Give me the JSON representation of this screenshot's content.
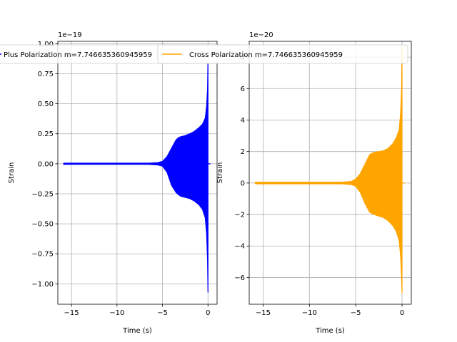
{
  "chart_data": [
    {
      "type": "line",
      "xlabel": "Time (s)",
      "ylabel": "Strain",
      "offset_text": "1e−19",
      "series": [
        {
          "name": "Plus Polarization m=7.746635360945959",
          "color": "#0000ff"
        }
      ],
      "xlim": [
        -16.5,
        1.0
      ],
      "ylim": [
        -1.17,
        1.02
      ],
      "x_ticks": [
        -15,
        -10,
        -5,
        0
      ],
      "x_tick_labels": [
        "−15",
        "−10",
        "−5",
        "0"
      ],
      "y_ticks": [
        -1.0,
        -0.75,
        -0.5,
        -0.25,
        0.0,
        0.25,
        0.5,
        0.75,
        1.0
      ],
      "y_tick_labels": [
        "−1.00",
        "−0.75",
        "−0.50",
        "−0.25",
        "0.00",
        "0.25",
        "0.50",
        "0.75",
        "1.00"
      ],
      "envelope": {
        "t": [
          -15.8,
          -6.5,
          -5.5,
          -5.0,
          -4.5,
          -4.0,
          -3.5,
          -3.2,
          -3.0,
          -2.5,
          -2.0,
          -1.5,
          -1.0,
          -0.6,
          -0.3,
          -0.15,
          -0.05,
          0.0
        ],
        "upper": [
          0.005,
          0.005,
          0.01,
          0.02,
          0.06,
          0.13,
          0.2,
          0.22,
          0.225,
          0.235,
          0.25,
          0.27,
          0.3,
          0.33,
          0.38,
          0.48,
          0.62,
          0.88
        ],
        "lower": [
          -0.005,
          -0.005,
          -0.01,
          -0.02,
          -0.07,
          -0.18,
          -0.24,
          -0.26,
          -0.27,
          -0.28,
          -0.29,
          -0.31,
          -0.34,
          -0.38,
          -0.45,
          -0.58,
          -0.8,
          -1.07
        ]
      },
      "grid": true,
      "legend_position": "top"
    },
    {
      "type": "line",
      "xlabel": "Time (s)",
      "ylabel": "Strain",
      "offset_text": "1e−20",
      "series": [
        {
          "name": "Cross Polarization m=7.746635360945959",
          "color": "#ffa500"
        }
      ],
      "xlim": [
        -16.5,
        1.0
      ],
      "ylim": [
        -7.7,
        9.0
      ],
      "x_ticks": [
        -15,
        -10,
        -5,
        0
      ],
      "x_tick_labels": [
        "−15",
        "−10",
        "−5",
        "0"
      ],
      "y_ticks": [
        -6,
        -4,
        -2,
        0,
        2,
        4,
        6,
        8
      ],
      "y_tick_labels": [
        "−6",
        "−4",
        "−2",
        "0",
        "2",
        "4",
        "6",
        "8"
      ],
      "envelope": {
        "t": [
          -15.8,
          -6.5,
          -5.5,
          -5.0,
          -4.5,
          -4.0,
          -3.5,
          -3.2,
          -3.0,
          -2.5,
          -2.0,
          -1.5,
          -1.0,
          -0.6,
          -0.3,
          -0.15,
          -0.05,
          0.0
        ],
        "upper": [
          0.05,
          0.05,
          0.1,
          0.25,
          0.6,
          1.2,
          1.8,
          1.9,
          1.95,
          2.0,
          2.05,
          2.2,
          2.5,
          2.9,
          3.4,
          4.5,
          6.0,
          8.7
        ],
        "lower": [
          -0.05,
          -0.05,
          -0.1,
          -0.2,
          -0.6,
          -1.3,
          -1.85,
          -1.95,
          -2.0,
          -2.1,
          -2.2,
          -2.4,
          -2.7,
          -3.1,
          -3.7,
          -4.7,
          -6.0,
          -7.0
        ]
      },
      "grid": true,
      "legend_position": "top"
    }
  ]
}
